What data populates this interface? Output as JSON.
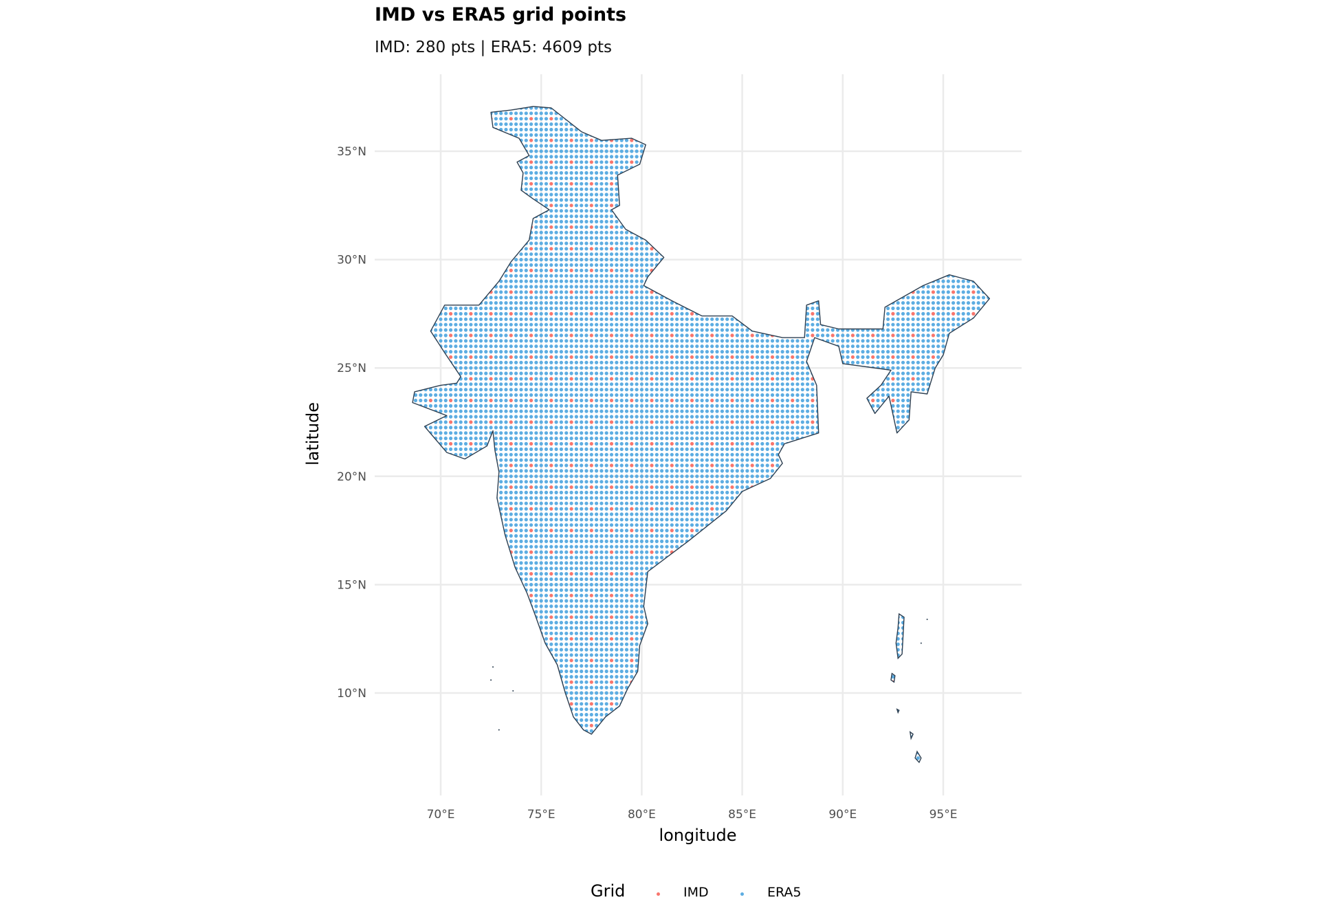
{
  "chart_data": {
    "type": "scatter",
    "title": "IMD vs ERA5 grid points",
    "subtitle": "IMD: 280 pts | ERA5: 4609 pts",
    "xlabel": "longitude",
    "ylabel": "latitude",
    "xlim": [
      67.3,
      99.0
    ],
    "ylim": [
      5.3,
      38.6
    ],
    "x_ticks": [
      70,
      75,
      80,
      85,
      90,
      95
    ],
    "x_tick_labels": [
      "70°E",
      "75°E",
      "80°E",
      "85°E",
      "90°E",
      "95°E"
    ],
    "y_ticks": [
      10,
      15,
      20,
      25,
      30,
      35
    ],
    "y_tick_labels": [
      "10°N",
      "15°N",
      "20°N",
      "25°N",
      "30°N",
      "35°N"
    ],
    "grid": true,
    "legend": {
      "title": "Grid",
      "position": "bottom",
      "entries": [
        {
          "name": "IMD",
          "color": "#F8766D"
        },
        {
          "name": "ERA5",
          "color": "#5DADE2"
        }
      ]
    },
    "series": [
      {
        "name": "ERA5",
        "count": 4609,
        "resolution_deg": 0.25,
        "color": "#5DADE2"
      },
      {
        "name": "IMD",
        "count": 280,
        "resolution_deg": 1.0,
        "color": "#F8766D"
      }
    ],
    "boundary_color": "#2C3E50"
  }
}
